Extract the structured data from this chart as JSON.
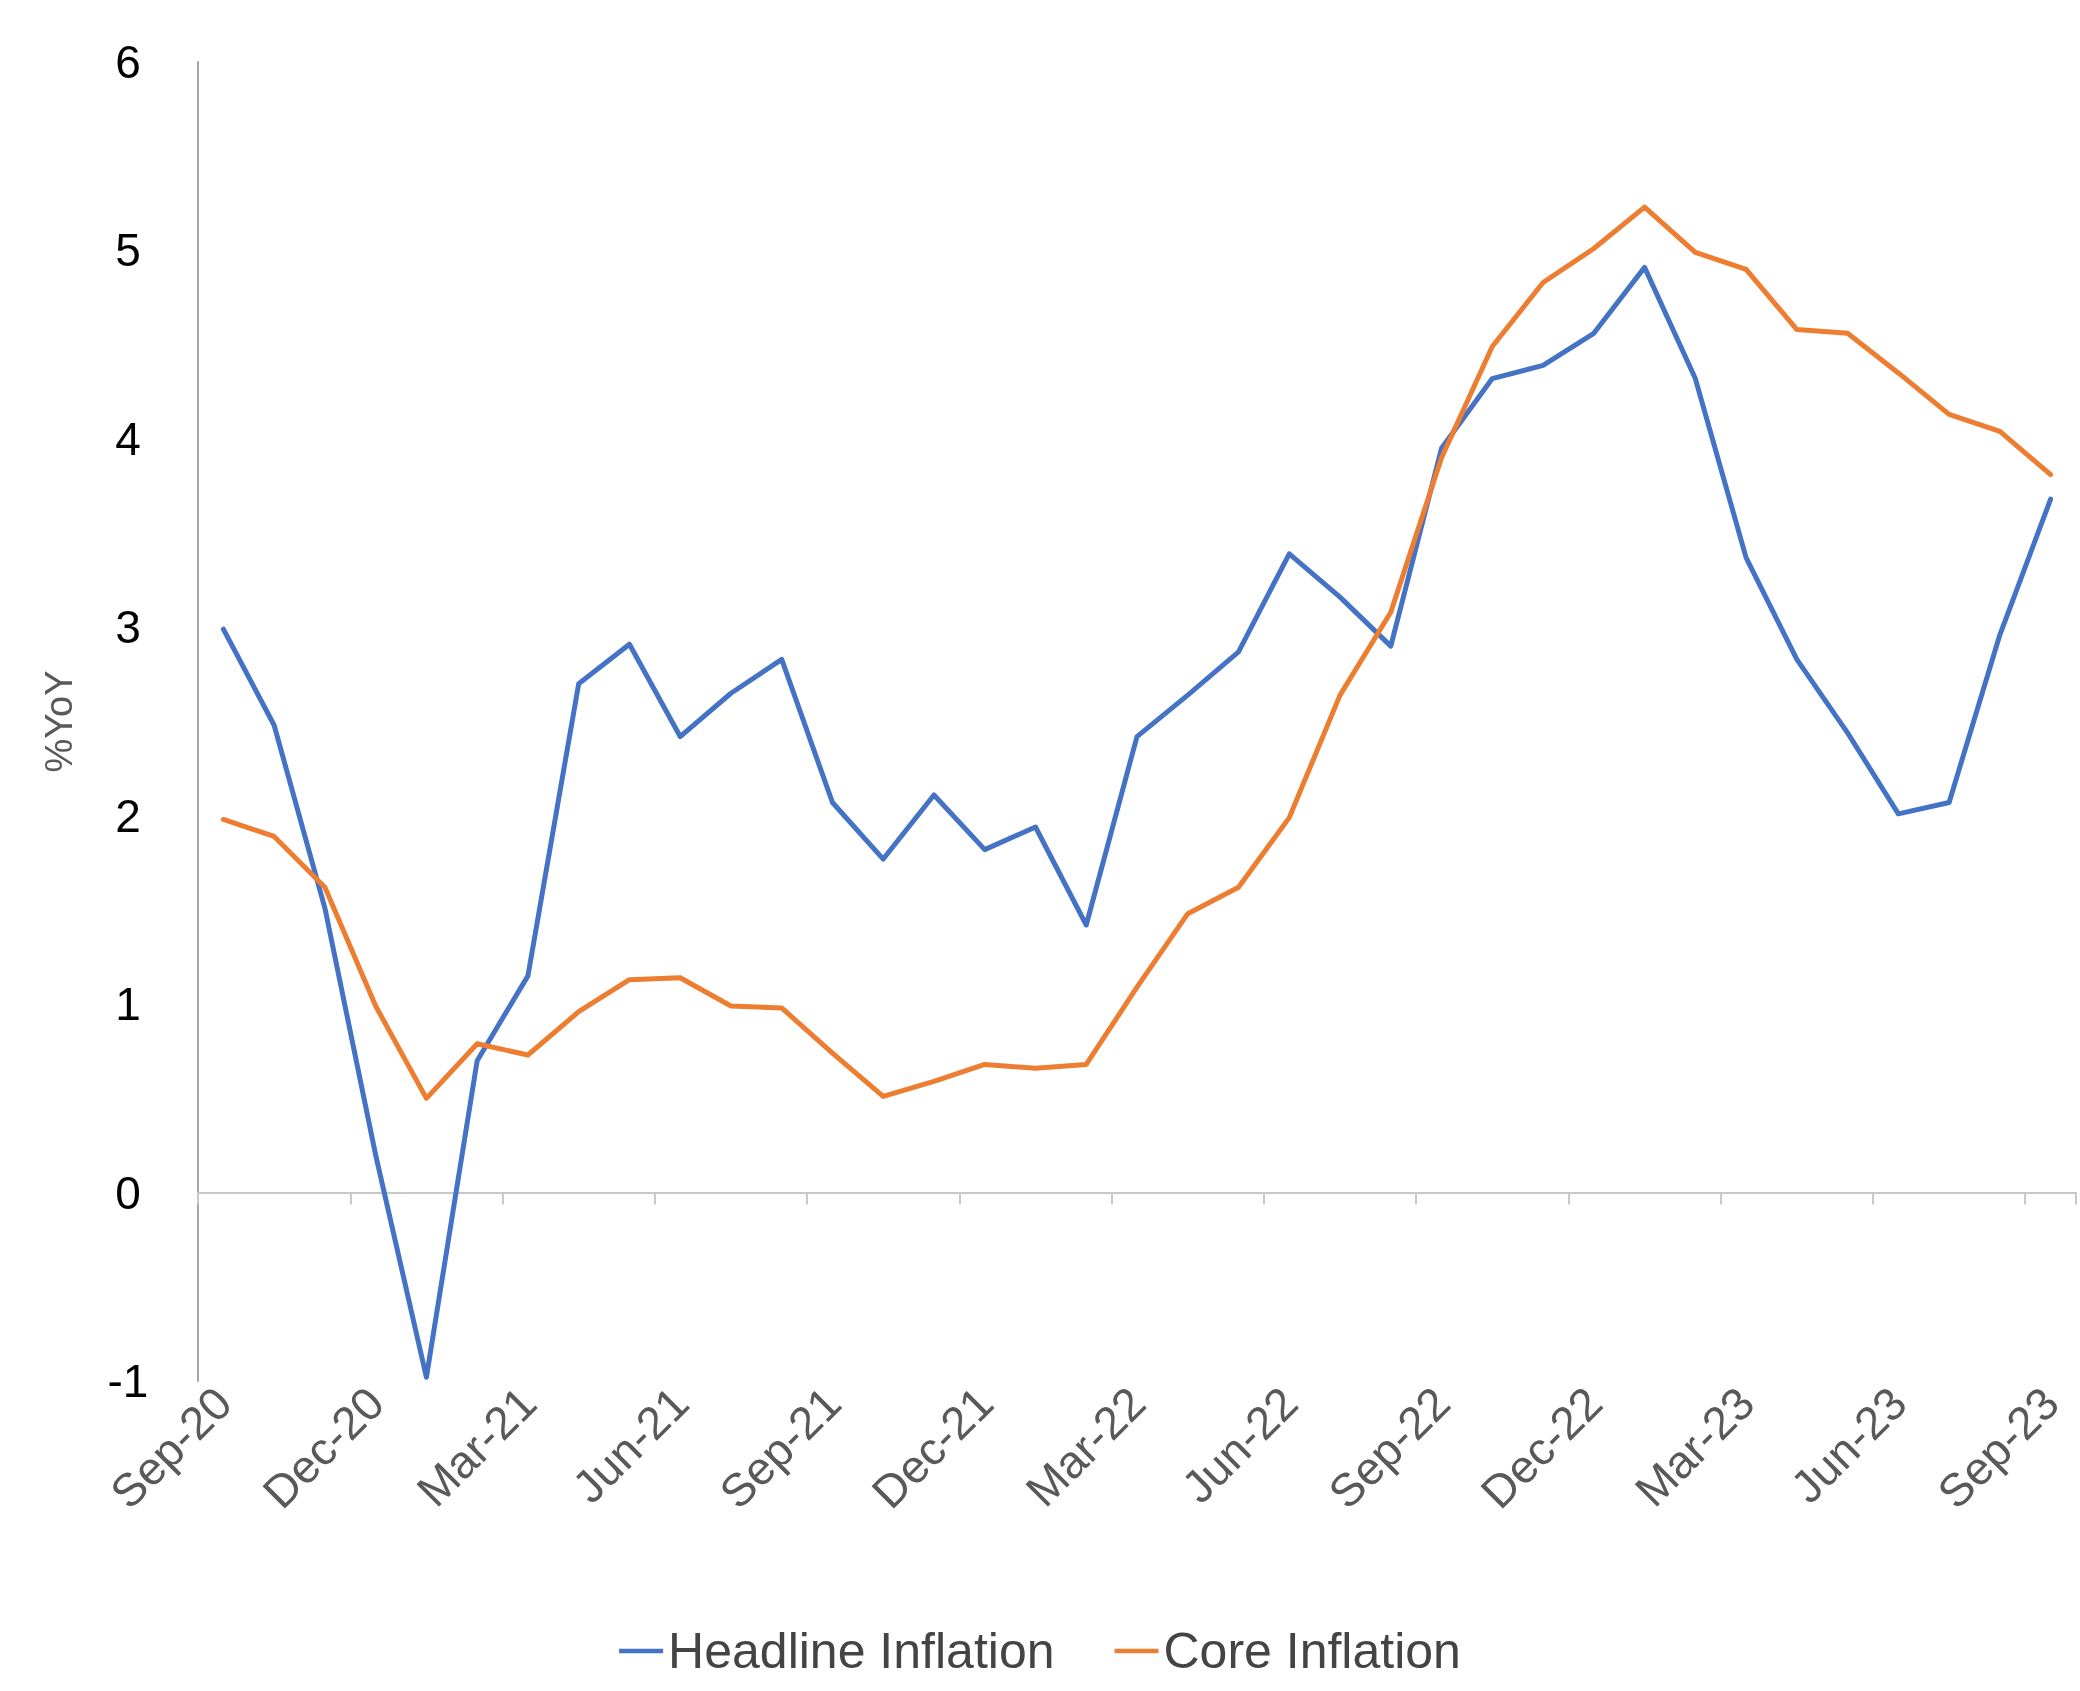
{
  "chart_data": {
    "type": "line",
    "ylabel": "%YoY",
    "categories": [
      "Sep-20",
      null,
      null,
      "Dec-20",
      null,
      null,
      "Mar-21",
      null,
      null,
      "Jun-21",
      null,
      null,
      "Sep-21",
      null,
      null,
      "Dec-21",
      null,
      null,
      "Mar-22",
      null,
      null,
      "Jun-22",
      null,
      null,
      "Sep-22",
      null,
      null,
      "Dec-22",
      null,
      null,
      "Mar-23",
      null,
      null,
      "Jun-23",
      null,
      null,
      "Sep-23"
    ],
    "series": [
      {
        "name": "Headline Inflation",
        "color": "#4472c4",
        "values": [
          2.99,
          2.48,
          1.51,
          0.2,
          -0.98,
          0.7,
          1.15,
          2.7,
          2.91,
          2.42,
          2.65,
          2.83,
          2.07,
          1.77,
          2.11,
          1.82,
          1.94,
          1.42,
          2.42,
          2.64,
          2.87,
          3.39,
          3.16,
          2.9,
          3.95,
          4.32,
          4.39,
          4.56,
          4.91,
          4.32,
          3.37,
          2.83,
          2.44,
          2.01,
          2.07,
          2.96,
          3.68
        ]
      },
      {
        "name": "Core Inflation",
        "color": "#ed7d31",
        "values": [
          1.98,
          1.89,
          1.62,
          0.99,
          0.5,
          0.79,
          0.73,
          0.96,
          1.13,
          1.14,
          0.99,
          0.98,
          0.74,
          0.51,
          0.59,
          0.68,
          0.66,
          0.68,
          1.09,
          1.48,
          1.62,
          1.99,
          2.64,
          3.08,
          3.9,
          4.49,
          4.83,
          5.01,
          5.23,
          4.99,
          4.9,
          4.58,
          4.56,
          4.35,
          4.13,
          4.04,
          3.81
        ]
      }
    ],
    "ylim": [
      -1,
      6
    ],
    "yticks": [
      -1,
      0,
      1,
      2,
      3,
      4,
      5,
      6
    ],
    "legend": "bottom",
    "marker": "none",
    "line_style": "solid"
  }
}
